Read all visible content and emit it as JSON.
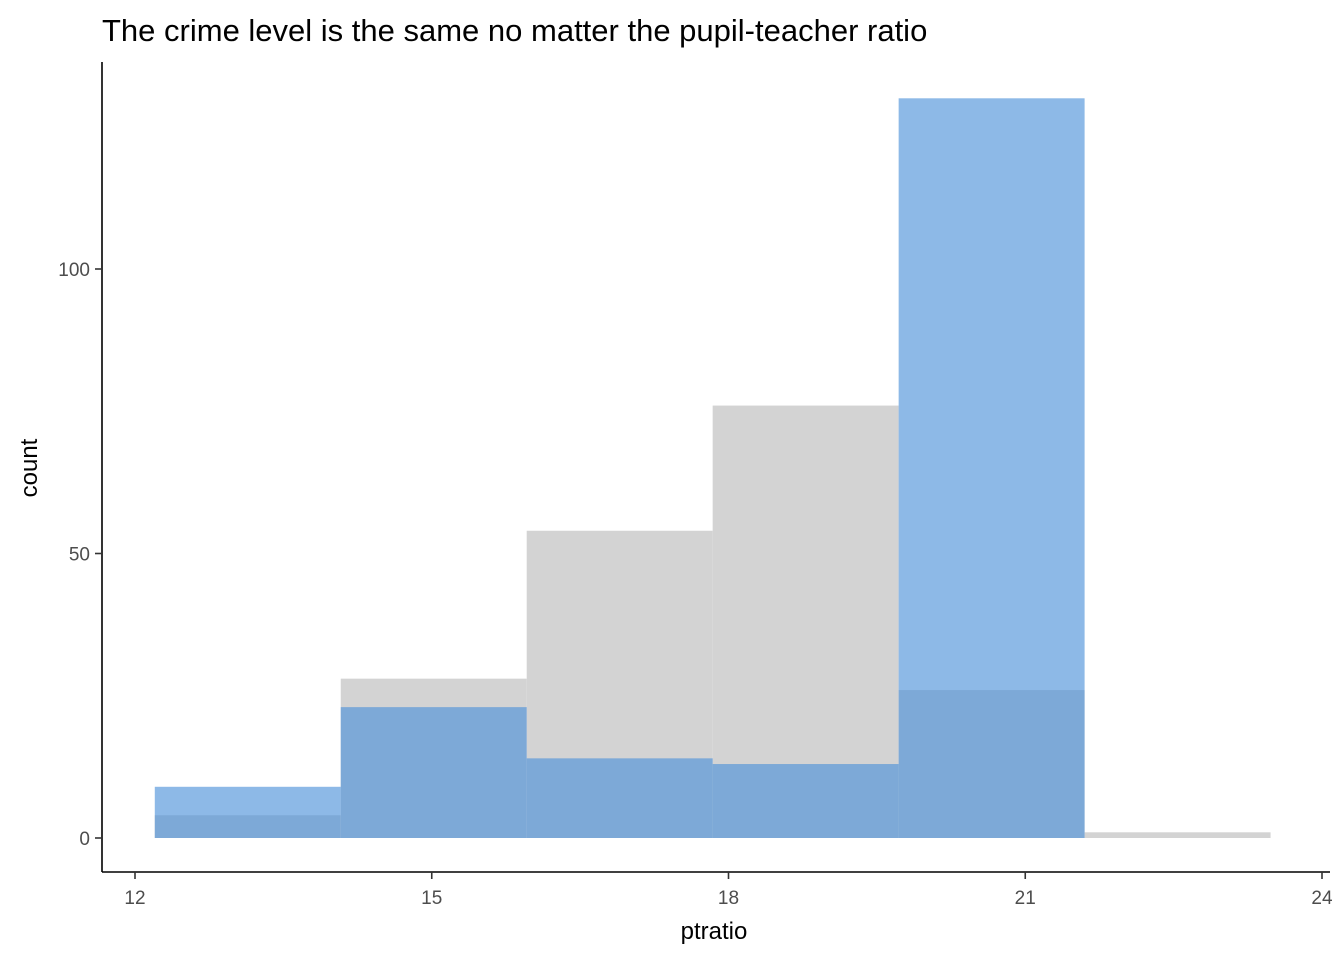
{
  "chart_data": {
    "type": "bar",
    "title": "The crime level is the same no matter the pupil-teacher ratio",
    "xlabel": "ptratio",
    "ylabel": "count",
    "xlim": [
      11.9,
      24.1
    ],
    "ylim": [
      -6,
      130
    ],
    "x_ticks": [
      12,
      15,
      18,
      21,
      24
    ],
    "y_ticks": [
      0,
      50,
      100
    ],
    "grid": false,
    "legend": "none",
    "bins": [
      [
        12.2,
        14.08
      ],
      [
        14.08,
        15.96
      ],
      [
        15.96,
        17.84
      ],
      [
        17.84,
        19.72
      ],
      [
        19.72,
        21.6
      ],
      [
        21.6,
        23.48
      ]
    ],
    "series": [
      {
        "color": "#d3d3d3",
        "values": [
          4,
          28,
          54,
          76,
          26,
          1
        ]
      },
      {
        "color": "#4a90d9",
        "values": [
          9,
          23,
          14,
          13,
          130,
          0
        ]
      }
    ]
  }
}
